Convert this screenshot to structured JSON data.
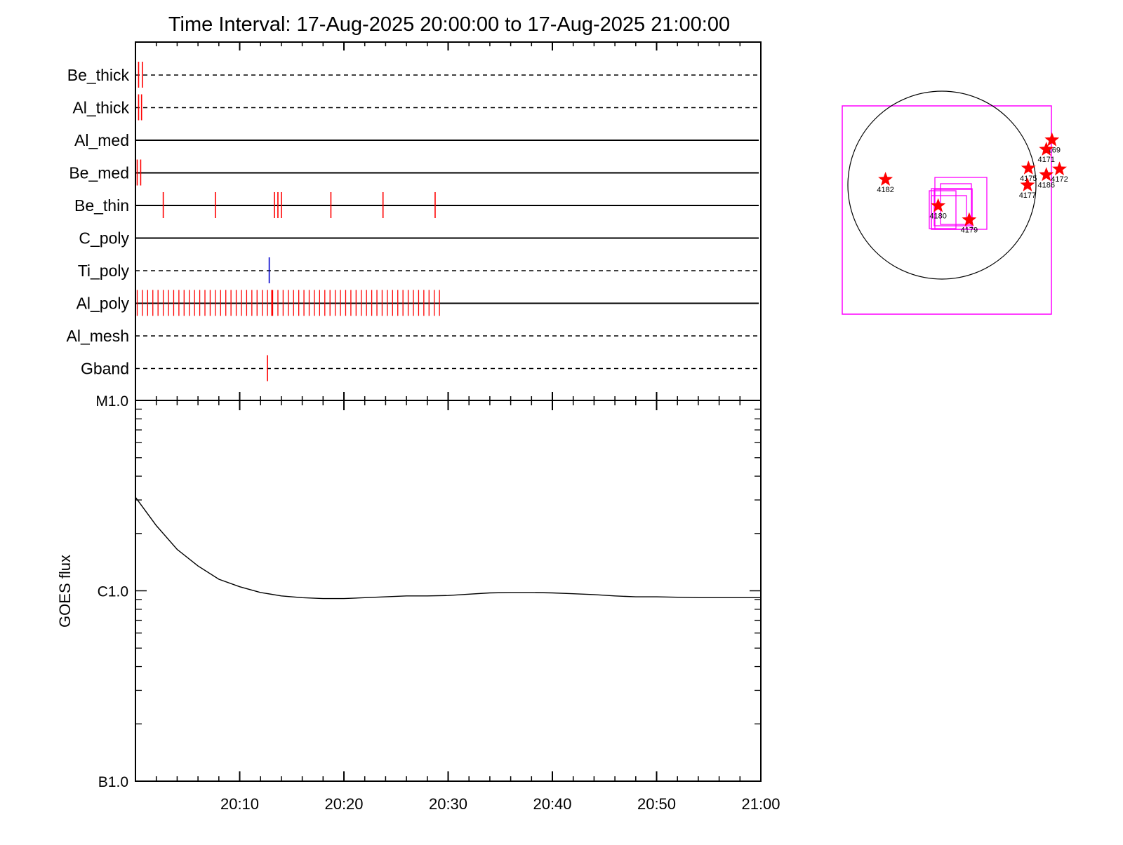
{
  "chart_data": [
    {
      "type": "timeline",
      "title": "Time Interval: 17-Aug-2025 20:00:00 to 17-Aug-2025 21:00:00",
      "x_range": [
        "20:00",
        "21:00"
      ],
      "rows": [
        {
          "label": "Be_thick",
          "style": "dashed",
          "events": [
            {
              "t": "20:00:18",
              "color": "#ff0000"
            },
            {
              "t": "20:00:40",
              "color": "#ff0000"
            }
          ]
        },
        {
          "label": "Al_thick",
          "style": "dashed",
          "events": [
            {
              "t": "20:00:18",
              "color": "#ff0000"
            },
            {
              "t": "20:00:35",
              "color": "#ff0000"
            }
          ]
        },
        {
          "label": "Al_med",
          "style": "solid",
          "events": []
        },
        {
          "label": "Be_med",
          "style": "solid",
          "events": [
            {
              "t": "20:00:10",
              "color": "#ff0000"
            },
            {
              "t": "20:00:30",
              "color": "#ff0000"
            }
          ]
        },
        {
          "label": "Be_thin",
          "style": "solid",
          "events": [
            {
              "t": "20:02:40",
              "color": "#ff0000"
            },
            {
              "t": "20:07:40",
              "color": "#ff0000"
            },
            {
              "t": "20:13:20",
              "color": "#ff0000"
            },
            {
              "t": "20:13:40",
              "color": "#ff0000"
            },
            {
              "t": "20:14:00",
              "color": "#ff0000"
            },
            {
              "t": "20:18:45",
              "color": "#ff0000"
            },
            {
              "t": "20:23:45",
              "color": "#ff0000"
            },
            {
              "t": "20:28:45",
              "color": "#ff0000"
            }
          ]
        },
        {
          "label": "C_poly",
          "style": "solid",
          "events": []
        },
        {
          "label": "Ti_poly",
          "style": "dashed",
          "events": [
            {
              "t": "20:12:50",
              "color": "#0000cc"
            }
          ]
        },
        {
          "label": "Al_poly",
          "style": "solid",
          "dense": {
            "start": "20:00:10",
            "end": "20:29:20",
            "step_s": 30,
            "color": "#ff0000"
          },
          "events": [
            {
              "t": "20:13:05",
              "color": "#ff0000"
            }
          ]
        },
        {
          "label": "Al_mesh",
          "style": "dashed",
          "events": []
        },
        {
          "label": "Gband",
          "style": "dashed",
          "events": [
            {
              "t": "20:12:40",
              "color": "#ff0000"
            }
          ]
        }
      ]
    },
    {
      "type": "line",
      "ylabel": "GOES flux",
      "y_scale": "log",
      "ylim": [
        "B1.0",
        "M1.0"
      ],
      "yticks": [
        "M1.0",
        "C1.0",
        "B1.0"
      ],
      "x_range": [
        "20:00",
        "21:00"
      ],
      "xticks": [
        "20:10",
        "20:20",
        "20:30",
        "20:40",
        "20:50",
        "21:00"
      ],
      "series": [
        {
          "color": "#000000",
          "points": [
            [
              "20:00",
              "C3.1"
            ],
            [
              "20:02",
              "C2.2"
            ],
            [
              "20:04",
              "C1.65"
            ],
            [
              "20:06",
              "C1.35"
            ],
            [
              "20:08",
              "C1.15"
            ],
            [
              "20:10",
              "C1.05"
            ],
            [
              "20:12",
              "C0.98"
            ],
            [
              "20:14",
              "C0.94"
            ],
            [
              "20:16",
              "C0.92"
            ],
            [
              "20:18",
              "C0.91"
            ],
            [
              "20:20",
              "C0.91"
            ],
            [
              "20:22",
              "C0.92"
            ],
            [
              "20:24",
              "C0.93"
            ],
            [
              "20:26",
              "C0.94"
            ],
            [
              "20:28",
              "C0.94"
            ],
            [
              "20:30",
              "C0.945"
            ],
            [
              "20:32",
              "C0.96"
            ],
            [
              "20:34",
              "C0.975"
            ],
            [
              "20:36",
              "C0.98"
            ],
            [
              "20:38",
              "C0.98"
            ],
            [
              "20:40",
              "C0.975"
            ],
            [
              "20:42",
              "C0.965"
            ],
            [
              "20:44",
              "C0.955"
            ],
            [
              "20:46",
              "C0.94"
            ],
            [
              "20:48",
              "C0.93"
            ],
            [
              "20:50",
              "C0.93"
            ],
            [
              "20:52",
              "C0.925"
            ],
            [
              "20:54",
              "C0.92"
            ],
            [
              "20:56",
              "C0.92"
            ],
            [
              "20:58",
              "C0.92"
            ],
            [
              "21:00",
              "C0.92"
            ]
          ]
        }
      ]
    },
    {
      "type": "scatter",
      "active_regions": [
        {
          "label": "4182",
          "x": -600,
          "y": 60
        },
        {
          "label": "4180",
          "x": -40,
          "y": -220
        },
        {
          "label": "4179",
          "x": 290,
          "y": -370
        },
        {
          "label": "4169",
          "x": 1170,
          "y": 480
        },
        {
          "label": "4171",
          "x": 1110,
          "y": 380
        },
        {
          "label": "4172",
          "x": 1250,
          "y": 170
        },
        {
          "label": "4186",
          "x": 1110,
          "y": 110
        },
        {
          "label": "4175",
          "x": 920,
          "y": 180
        },
        {
          "label": "4177",
          "x": 910,
          "y": 0
        }
      ],
      "marker_color": "#ff0000",
      "box_color": "#ff00ff"
    }
  ]
}
